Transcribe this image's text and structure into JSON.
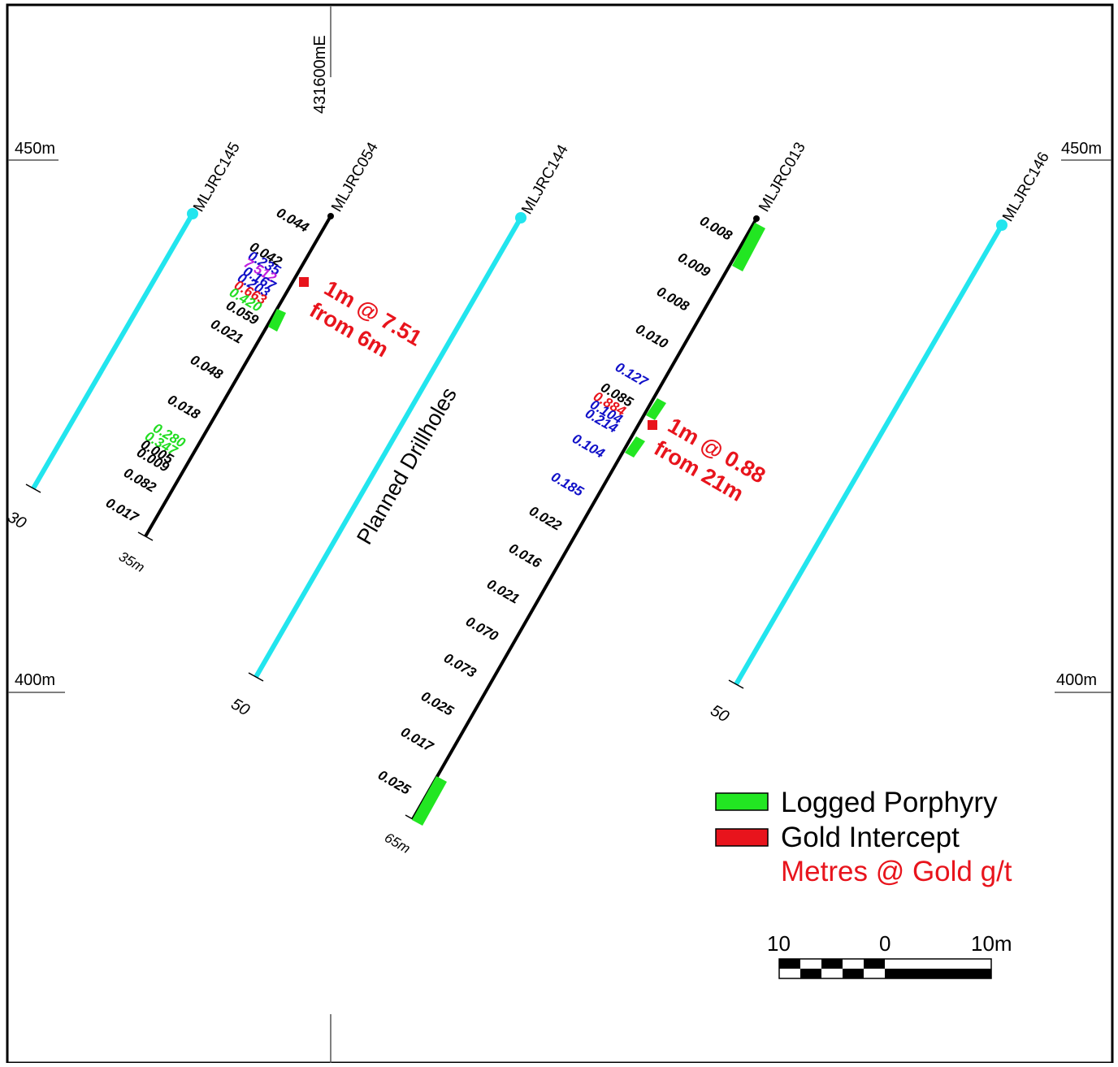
{
  "grid": {
    "easting": "431600mE",
    "rl_450_left": "450m",
    "rl_450_right": "450m",
    "rl_400_left": "400m",
    "rl_400_right": "400m"
  },
  "drillholes": {
    "mljrc145": {
      "name": "MLJRC145",
      "end_depth": "30",
      "status": "planned"
    },
    "mljrc054": {
      "name": "MLJRC054",
      "end_depth": "35m",
      "assays": [
        {
          "value": "0.044",
          "color": "#000000"
        },
        {
          "value": "0.042",
          "color": "#000000"
        },
        {
          "value": "0.235",
          "color": "#1010c8"
        },
        {
          "value": "7.512",
          "color": "#c020e0"
        },
        {
          "value": "0.167",
          "color": "#1010c8"
        },
        {
          "value": "0.203",
          "color": "#1010c8"
        },
        {
          "value": "0.663",
          "color": "#e8141c"
        },
        {
          "value": "0.420",
          "color": "#22dd22"
        },
        {
          "value": "0.059",
          "color": "#000000"
        },
        {
          "value": "0.021",
          "color": "#000000"
        },
        {
          "value": "0.048",
          "color": "#000000"
        },
        {
          "value": "0.018",
          "color": "#000000"
        },
        {
          "value": "0.280",
          "color": "#22dd22"
        },
        {
          "value": "0.347",
          "color": "#22dd22"
        },
        {
          "value": "0.005",
          "color": "#000000"
        },
        {
          "value": "0.009",
          "color": "#000000"
        },
        {
          "value": "0.082",
          "color": "#000000"
        },
        {
          "value": "0.017",
          "color": "#000000"
        }
      ],
      "intercept_line1": "1m @ 7.51",
      "intercept_line2": "from 6m"
    },
    "mljrc144": {
      "name": "MLJRC144",
      "end_depth": "50",
      "status": "planned"
    },
    "mljrc013": {
      "name": "MLJRC013",
      "end_depth": "65m",
      "assays": [
        {
          "value": "0.008",
          "color": "#000000"
        },
        {
          "value": "0.009",
          "color": "#000000"
        },
        {
          "value": "0.008",
          "color": "#000000"
        },
        {
          "value": "0.010",
          "color": "#000000"
        },
        {
          "value": "0.127",
          "color": "#1010c8"
        },
        {
          "value": "0.085",
          "color": "#000000"
        },
        {
          "value": "0.884",
          "color": "#e8141c"
        },
        {
          "value": "0.104",
          "color": "#1010c8"
        },
        {
          "value": "0.214",
          "color": "#1010c8"
        },
        {
          "value": "0.104",
          "color": "#1010c8"
        },
        {
          "value": "0.185",
          "color": "#1010c8"
        },
        {
          "value": "0.022",
          "color": "#000000"
        },
        {
          "value": "0.016",
          "color": "#000000"
        },
        {
          "value": "0.021",
          "color": "#000000"
        },
        {
          "value": "0.070",
          "color": "#000000"
        },
        {
          "value": "0.073",
          "color": "#000000"
        },
        {
          "value": "0.025",
          "color": "#000000"
        },
        {
          "value": "0.017",
          "color": "#000000"
        },
        {
          "value": "0.025",
          "color": "#000000"
        }
      ],
      "intercept_line1": "1m @ 0.88",
      "intercept_line2": "from 21m"
    },
    "mljrc146": {
      "name": "MLJRC146",
      "end_depth": "50",
      "status": "planned"
    }
  },
  "planned_label": "Planned Drillholes",
  "legend": {
    "porphyry": "Logged Porphyry",
    "gold": "Gold Intercept",
    "metres": "Metres @ Gold g/t",
    "porphyry_color": "#22e622",
    "gold_color": "#e8141c"
  },
  "scale": {
    "left": "10",
    "mid": "0",
    "right": "10m"
  },
  "colors": {
    "planned_hole": "#22e5ee",
    "drilled_hole": "#000000",
    "text_red": "#e8141c"
  }
}
